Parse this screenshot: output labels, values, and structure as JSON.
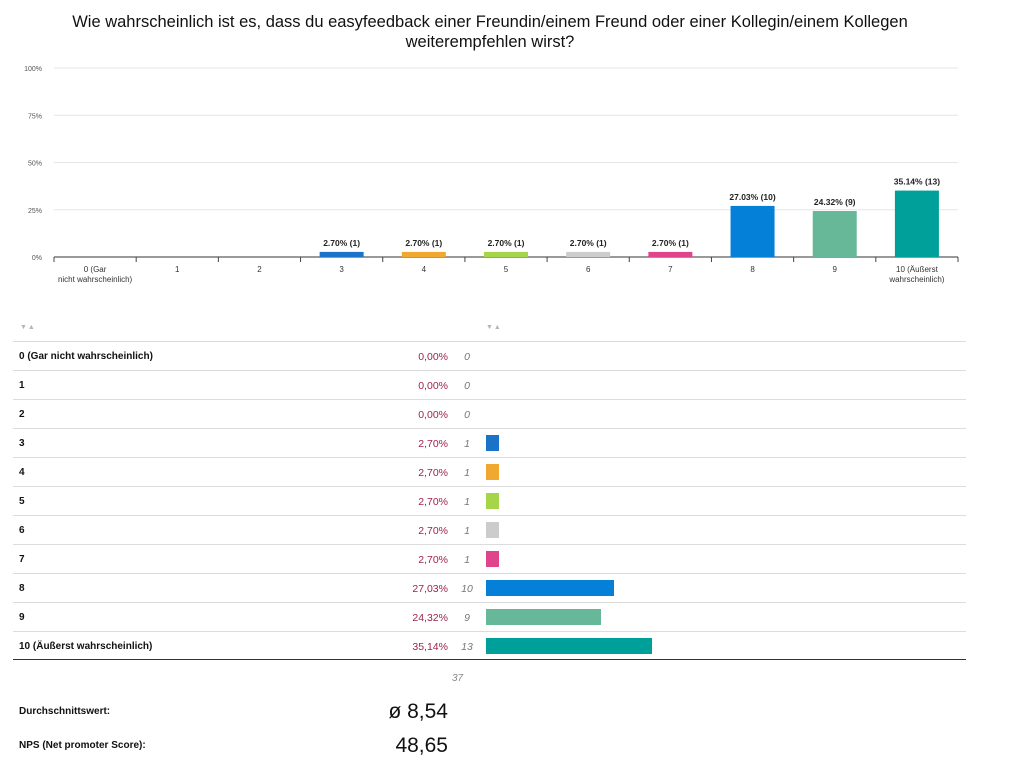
{
  "question": "Wie wahrscheinlich ist es, dass du easyfeedback einer Freundin/einem Freund oder einer Kollegin/einem Kollegen weiterempfehlen wirst?",
  "chart_data": {
    "type": "bar",
    "title": "Wie wahrscheinlich ist es, dass du easyfeedback einer Freundin/einem Freund oder einer Kollegin/einem Kollegen weiterempfehlen wirst?",
    "categories": [
      "0 (Gar nicht wahrscheinlich)",
      "1",
      "2",
      "3",
      "4",
      "5",
      "6",
      "7",
      "8",
      "9",
      "10 (Äußerst wahrscheinlich)"
    ],
    "values": [
      0,
      0,
      0,
      2.7,
      2.7,
      2.7,
      2.7,
      2.7,
      27.03,
      24.32,
      35.14
    ],
    "counts": [
      0,
      0,
      0,
      1,
      1,
      1,
      1,
      1,
      10,
      9,
      13
    ],
    "data_labels": [
      "",
      "",
      "",
      "2.70% (1)",
      "2.70% (1)",
      "2.70% (1)",
      "2.70% (1)",
      "2.70% (1)",
      "27.03% (10)",
      "24.32% (9)",
      "35.14% (13)"
    ],
    "colors": [
      "#0078d4",
      "#0078d4",
      "#0078d4",
      "#1a73c9",
      "#f0a830",
      "#a5d64a",
      "#cccccc",
      "#e0448a",
      "#0480d8",
      "#66b898",
      "#00a09a"
    ],
    "yticks": [
      "0%",
      "25%",
      "50%",
      "75%",
      "100%"
    ],
    "ylim": [
      0,
      100
    ],
    "grid": true,
    "xlabel": "",
    "ylabel": ""
  },
  "table": {
    "rows": [
      {
        "label": "0 (Gar nicht wahrscheinlich)",
        "pct": "0,00%",
        "count": "0"
      },
      {
        "label": "1",
        "pct": "0,00%",
        "count": "0"
      },
      {
        "label": "2",
        "pct": "0,00%",
        "count": "0"
      },
      {
        "label": "3",
        "pct": "2,70%",
        "count": "1"
      },
      {
        "label": "4",
        "pct": "2,70%",
        "count": "1"
      },
      {
        "label": "5",
        "pct": "2,70%",
        "count": "1"
      },
      {
        "label": "6",
        "pct": "2,70%",
        "count": "1"
      },
      {
        "label": "7",
        "pct": "2,70%",
        "count": "1"
      },
      {
        "label": "8",
        "pct": "27,03%",
        "count": "10"
      },
      {
        "label": "9",
        "pct": "24,32%",
        "count": "9"
      },
      {
        "label": "10 (Äußerst wahrscheinlich)",
        "pct": "35,14%",
        "count": "13"
      }
    ],
    "total": "37"
  },
  "stats": {
    "average_label": "Durchschnittswert:",
    "average_value": "ø 8,54",
    "nps_label": "NPS (Net promoter Score):",
    "nps_value": "48,65"
  }
}
